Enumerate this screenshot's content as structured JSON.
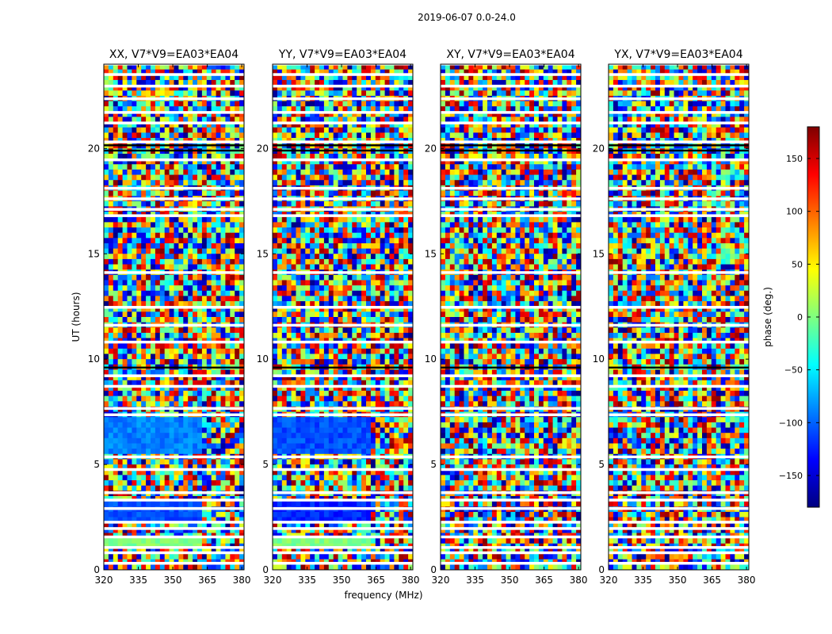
{
  "figure": {
    "suptitle": "2019-06-07 0.0-24.0"
  },
  "colors": {
    "panel_border": "#000000",
    "flag_white": "#ffffff",
    "jet_stops": [
      "#00007f",
      "#0000ff",
      "#007fff",
      "#00ffff",
      "#7fff7f",
      "#ffff00",
      "#ff7f00",
      "#ff0000",
      "#7f0000"
    ]
  },
  "chart_data": {
    "type": "heatmap",
    "title": "2019-06-07 0.0-24.0",
    "xlabel": "frequency (MHz)",
    "ylabel": "UT (hours)",
    "xlim": [
      320,
      381
    ],
    "ylim": [
      0,
      24
    ],
    "xticks": [
      "320",
      "335",
      "350",
      "365",
      "380"
    ],
    "yticks": [
      "0",
      "5",
      "10",
      "15",
      "20"
    ],
    "colorbar": {
      "label": "phase (deg.)",
      "range": [
        -180,
        180
      ],
      "ticks": [
        "150",
        "100",
        "50",
        "0",
        "−50",
        "−100",
        "−150"
      ],
      "tick_values": [
        150,
        100,
        50,
        0,
        -50,
        -100,
        -150
      ],
      "colormap": "jet"
    },
    "panels": [
      {
        "title": "XX, V7*V9=EA03*EA04",
        "polarization": "XX",
        "coherent_bands": [
          [
            1.0,
            1.6,
            5
          ],
          [
            2.2,
            3.2,
            2
          ],
          [
            5.5,
            7.2,
            2.5
          ]
        ],
        "coherent_until_mhz": 362
      },
      {
        "title": "YY, V7*V9=EA03*EA04",
        "polarization": "YY",
        "coherent_bands": [
          [
            1.0,
            1.6,
            5
          ],
          [
            2.2,
            3.2,
            1.6
          ],
          [
            5.5,
            7.2,
            2
          ]
        ],
        "coherent_until_mhz": 363
      },
      {
        "title": "XY, V7*V9=EA03*EA04",
        "polarization": "XY",
        "coherent_bands": [],
        "coherent_until_mhz": 320
      },
      {
        "title": "YX, V7*V9=EA03*EA04",
        "polarization": "YX",
        "coherent_bands": [],
        "coherent_until_mhz": 320
      }
    ],
    "flagged_ut_hours": [
      0.3,
      0.8,
      1.05,
      1.55,
      1.95,
      2.25,
      2.9,
      3.3,
      3.65,
      4.75,
      5.35,
      7.35,
      7.65,
      8.7,
      9.2,
      10.8,
      11.6,
      12.45,
      14.1,
      16.8,
      17.1,
      17.6,
      18.1,
      19.45,
      20.3,
      21.2,
      21.7,
      22.35,
      22.95,
      23.5,
      24.0
    ],
    "dark_ut_hours": [
      19.9,
      9.6,
      20.15
    ]
  }
}
